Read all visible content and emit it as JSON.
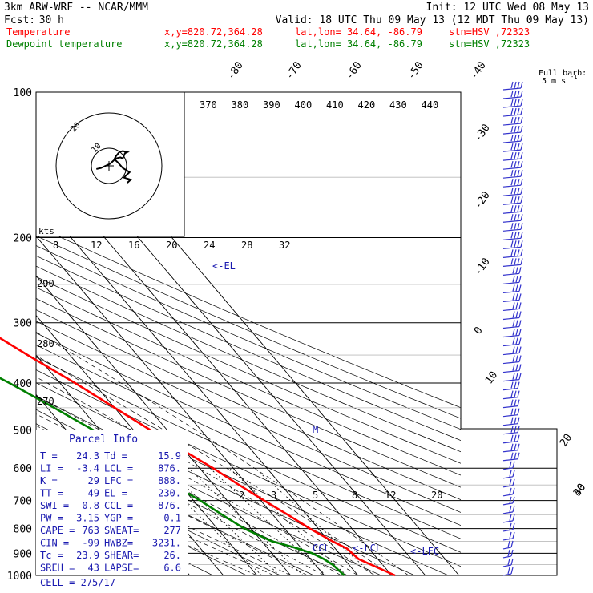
{
  "header": {
    "model": "3km ARW-WRF -- NCAR/MMM",
    "init": "Init: 12 UTC Wed 08 May 13",
    "fcst_label": "Fcst:",
    "fcst_value": "30 h",
    "valid": "Valid: 18 UTC Thu 09 May 13 (12 MDT Thu 09 May 13)",
    "line_temp": {
      "name": "Temperature",
      "xy": "x,y=820.72,364.28",
      "latlon": "lat,lon= 34.64, -86.79",
      "stn": "stn=HSV ,72323"
    },
    "line_dew": {
      "name": "Dewpoint temperature",
      "xy": "x,y=820.72,364.28",
      "latlon": "lat,lon= 34.64, -86.79",
      "stn": "stn=HSV ,72323"
    }
  },
  "colors": {
    "temperature": "#ff0000",
    "dewpoint": "#008000",
    "barbs": "#3333cc",
    "annotation": "#1a1ab0",
    "grid": "#000000"
  },
  "chart_data": {
    "type": "line",
    "diagram": "skew-T log-P",
    "pressure_labels": [
      "100",
      "200",
      "300",
      "400",
      "500",
      "600",
      "700",
      "800",
      "900",
      "1000"
    ],
    "pressure_levels": [
      100,
      200,
      300,
      400,
      500,
      600,
      700,
      800,
      900,
      1000
    ],
    "isotherm_labels": [
      "-80",
      "-70",
      "-60",
      "-50",
      "-40",
      "-30",
      "-20",
      "-10",
      "0",
      "10",
      "20",
      "30",
      "40"
    ],
    "theta_e_labels": [
      "370",
      "380",
      "390",
      "400",
      "410",
      "420",
      "430",
      "440"
    ],
    "theta_labels": [
      "290",
      "280",
      "270"
    ],
    "mixing_ratio_labels": [
      "2",
      "3",
      "5",
      "8",
      "12",
      "20"
    ],
    "hodograph": {
      "unit_label": "kts",
      "scale_labels": [
        "8",
        "12",
        "16",
        "20",
        "24",
        "28",
        "32"
      ],
      "ring_labels": [
        "20",
        "10"
      ],
      "trace_uv": [
        [
          -18,
          3
        ],
        [
          -14,
          2
        ],
        [
          -10,
          0
        ],
        [
          -6,
          -2
        ],
        [
          -3,
          -5
        ],
        [
          -1,
          -7
        ],
        [
          3,
          -8
        ],
        [
          5,
          -7
        ],
        [
          7,
          -12
        ],
        [
          9,
          -13
        ],
        [
          5,
          -14
        ],
        [
          2,
          -13
        ],
        [
          -1,
          -9
        ],
        [
          -2,
          -7
        ],
        [
          -1,
          -5
        ],
        [
          1,
          -3
        ],
        [
          5,
          2
        ],
        [
          8,
          4
        ],
        [
          11,
          6
        ],
        [
          8,
          9
        ],
        [
          6,
          11
        ],
        [
          12,
          13
        ],
        [
          9,
          16
        ]
      ]
    },
    "series": [
      {
        "name": "Temperature",
        "color": "#ff0000",
        "points": [
          [
            1000,
            31
          ],
          [
            925,
            24.3
          ],
          [
            880,
            23.5
          ],
          [
            850,
            21
          ],
          [
            800,
            17.5
          ],
          [
            750,
            14.5
          ],
          [
            700,
            11
          ],
          [
            650,
            7.5
          ],
          [
            600,
            4
          ],
          [
            550,
            -0.5
          ],
          [
            500,
            -5
          ],
          [
            450,
            -10
          ],
          [
            400,
            -15.5
          ],
          [
            350,
            -22.5
          ],
          [
            300,
            -30
          ],
          [
            275,
            -34
          ],
          [
            250,
            -38
          ],
          [
            225,
            -43
          ],
          [
            200,
            -48
          ],
          [
            175,
            -54
          ],
          [
            150,
            -58
          ],
          [
            130,
            -57
          ],
          [
            120,
            -55
          ],
          [
            110,
            -55
          ],
          [
            100,
            -56
          ]
        ]
      },
      {
        "name": "Dewpoint temperature",
        "color": "#008000",
        "points": [
          [
            1000,
            15.9
          ],
          [
            950,
            15.2
          ],
          [
            925,
            14
          ],
          [
            900,
            12
          ],
          [
            875,
            8
          ],
          [
            850,
            3
          ],
          [
            800,
            -2
          ],
          [
            750,
            -5
          ],
          [
            700,
            -8
          ],
          [
            650,
            -12
          ],
          [
            600,
            -17
          ],
          [
            550,
            -20
          ],
          [
            500,
            -22
          ],
          [
            450,
            -28
          ],
          [
            400,
            -35
          ],
          [
            350,
            -44
          ],
          [
            300,
            -55
          ],
          [
            275,
            -58
          ],
          [
            250,
            -57
          ],
          [
            225,
            -57
          ],
          [
            200,
            -60
          ],
          [
            175,
            -65
          ],
          [
            150,
            -68
          ],
          [
            125,
            -72
          ],
          [
            100,
            -77
          ]
        ]
      }
    ],
    "level_markers": [
      {
        "label": "<-EL",
        "pressure": 230
      },
      {
        "label": "CCL",
        "pressure": 876
      },
      {
        "label": "<-LCL",
        "pressure": 876
      },
      {
        "label": "<-LFC",
        "pressure": 888
      },
      {
        "label": "M",
        "pressure": 500
      }
    ],
    "barb_header": "Full barb:",
    "barb_unit": "5 m s",
    "barbs_count": 56
  },
  "parcel": {
    "title": "Parcel Info",
    "rows": [
      [
        "T  =",
        "24.3",
        "Td =",
        "15.9"
      ],
      [
        "LI =",
        "-3.4",
        "LCL =",
        "876."
      ],
      [
        "K  =",
        "29",
        "LFC =",
        "888."
      ],
      [
        "TT =",
        "49",
        "EL  =",
        "230."
      ],
      [
        "SWI =",
        "0.8",
        "CCL =",
        "876."
      ],
      [
        "PW  =",
        "3.15",
        "YGP =",
        "0.1"
      ],
      [
        "CAPE =",
        "763",
        "SWEAT=",
        "277"
      ],
      [
        "CIN  =",
        "-99",
        "HWBZ=",
        "3231."
      ],
      [
        "Tc  =",
        "23.9",
        "SHEAR=",
        "26."
      ],
      [
        "SREH =",
        "43",
        "LAPSE=",
        "6.6"
      ]
    ],
    "cell": "CELL = 275/17"
  }
}
